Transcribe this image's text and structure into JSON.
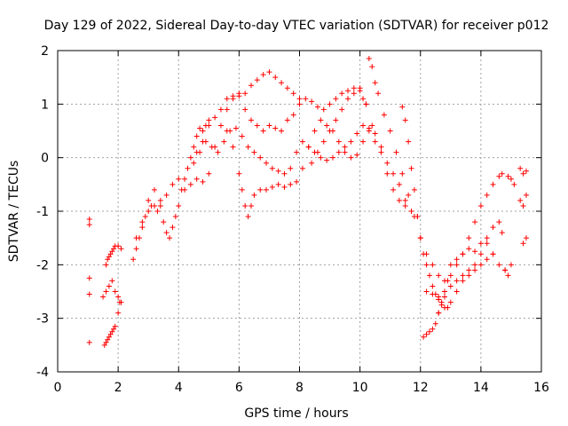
{
  "chart_data": {
    "type": "scatter",
    "title": "Day 129 of 2022, Sidereal Day-to-day VTEC variation (SDTVAR) for receiver p012",
    "xlabel": "GPS time / hours",
    "ylabel": "SDTVAR / TECUs",
    "xlim": [
      0,
      16
    ],
    "ylim": [
      -4,
      2
    ],
    "xticks": [
      0,
      2,
      4,
      6,
      8,
      10,
      12,
      14,
      16
    ],
    "yticks": [
      -4,
      -3,
      -2,
      -1,
      0,
      1,
      2
    ],
    "grid": true,
    "marker": "+",
    "color": "#ff0000",
    "series": [
      {
        "x": [
          1.05,
          1.05,
          1.05,
          1.05,
          1.05
        ],
        "y": [
          -1.15,
          -1.25,
          -2.25,
          -2.55,
          -3.45
        ]
      },
      {
        "x": [
          1.55,
          1.6,
          1.65,
          1.7,
          1.75,
          1.8,
          1.85,
          1.9,
          2.0,
          2.05
        ],
        "y": [
          -3.5,
          -3.45,
          -3.4,
          -3.35,
          -3.3,
          -3.25,
          -3.2,
          -3.15,
          -2.9,
          -2.7
        ]
      },
      {
        "x": [
          1.5,
          1.6,
          1.7,
          1.8,
          1.9,
          2.0,
          2.1
        ],
        "y": [
          -2.6,
          -2.5,
          -2.4,
          -2.3,
          -2.5,
          -2.6,
          -2.7
        ]
      },
      {
        "x": [
          1.6,
          1.65,
          1.7,
          1.75,
          1.8,
          1.85,
          1.9,
          2.0,
          2.1
        ],
        "y": [
          -2.0,
          -1.9,
          -1.85,
          -1.8,
          -1.75,
          -1.7,
          -1.65,
          -1.65,
          -1.7
        ]
      },
      {
        "x": [
          2.5,
          2.6,
          2.7,
          2.8,
          2.9,
          3.0,
          3.1,
          3.2,
          3.3,
          3.4,
          3.5,
          3.6,
          3.7,
          3.8,
          3.9,
          4.0,
          4.1,
          4.2,
          4.3,
          4.4,
          4.5,
          4.6,
          4.7,
          4.8,
          4.9,
          5.0
        ],
        "y": [
          -1.9,
          -1.7,
          -1.5,
          -1.3,
          -1.1,
          -1.0,
          -0.9,
          -0.9,
          -1.0,
          -0.8,
          -1.2,
          -1.4,
          -1.5,
          -1.3,
          -1.1,
          -0.9,
          -0.6,
          -0.4,
          -0.2,
          0.0,
          0.2,
          0.4,
          0.55,
          0.5,
          0.6,
          0.7
        ]
      },
      {
        "x": [
          2.6,
          2.8,
          3.0,
          3.2,
          3.4,
          3.6,
          3.8,
          4.0,
          4.2,
          4.4,
          4.6,
          4.8,
          5.0,
          5.2,
          5.4,
          5.6,
          5.8,
          6.0,
          6.2,
          6.4,
          6.6,
          6.8,
          7.0,
          7.2,
          7.4,
          7.6,
          7.8,
          8.0
        ],
        "y": [
          -1.5,
          -1.2,
          -0.8,
          -0.6,
          -0.9,
          -0.7,
          -0.5,
          -0.4,
          -0.6,
          -0.5,
          -0.4,
          -0.45,
          -0.3,
          0.2,
          0.6,
          0.9,
          1.1,
          1.15,
          1.2,
          1.35,
          1.45,
          1.55,
          1.6,
          1.5,
          1.4,
          1.3,
          1.2,
          1.1
        ]
      },
      {
        "x": [
          4.6,
          4.8,
          5.0,
          5.2,
          5.4,
          5.6,
          5.8,
          6.0,
          6.2,
          6.4,
          6.6,
          6.8,
          7.0,
          7.2,
          7.4,
          7.6,
          7.8,
          8.0,
          8.2,
          8.4,
          8.6,
          8.8,
          9.0,
          9.2,
          9.4,
          9.6,
          9.8,
          10.0,
          10.2,
          10.4
        ],
        "y": [
          0.1,
          0.3,
          0.6,
          0.75,
          0.9,
          1.1,
          1.15,
          1.2,
          0.9,
          0.7,
          0.6,
          0.5,
          0.6,
          0.55,
          0.5,
          0.7,
          0.8,
          1.0,
          1.1,
          1.05,
          0.95,
          0.9,
          1.0,
          1.1,
          1.2,
          1.25,
          1.3,
          1.25,
          1.0,
          0.6
        ]
      },
      {
        "x": [
          4.5,
          4.7,
          4.9,
          5.1,
          5.3,
          5.5,
          5.7,
          5.9,
          6.1,
          6.3,
          6.5,
          6.7,
          6.9,
          7.1,
          7.3,
          7.5,
          7.7,
          7.9,
          8.1,
          8.3,
          8.5,
          8.7,
          8.9,
          9.1,
          9.3,
          9.5,
          9.7,
          9.9,
          10.1,
          10.3,
          10.5,
          10.7,
          10.9,
          11.1,
          11.3,
          11.5,
          11.7,
          11.9
        ],
        "y": [
          -0.1,
          0.1,
          0.3,
          0.2,
          0.1,
          0.3,
          0.5,
          0.55,
          0.4,
          0.2,
          0.1,
          0.0,
          -0.1,
          -0.2,
          -0.25,
          -0.3,
          -0.2,
          0.1,
          0.3,
          0.2,
          0.1,
          0.0,
          -0.05,
          0.0,
          0.1,
          0.2,
          0.3,
          0.45,
          0.6,
          0.5,
          0.3,
          0.1,
          -0.3,
          -0.6,
          -0.8,
          -0.9,
          -1.0,
          -1.1
        ]
      },
      {
        "x": [
          5.6,
          5.8,
          6.0,
          6.1,
          6.2,
          6.3,
          6.4,
          6.5,
          6.7,
          6.9,
          7.1,
          7.3,
          7.5,
          7.7,
          7.9,
          8.1,
          8.3,
          8.5,
          8.7,
          8.9,
          9.1,
          9.3,
          9.5,
          9.7,
          9.9,
          10.1,
          10.3,
          10.5,
          10.7,
          10.9,
          11.1,
          11.3,
          11.5
        ],
        "y": [
          0.5,
          0.2,
          -0.3,
          -0.6,
          -0.9,
          -1.1,
          -0.9,
          -0.7,
          -0.6,
          -0.6,
          -0.55,
          -0.5,
          -0.55,
          -0.5,
          -0.45,
          -0.2,
          0.2,
          0.5,
          0.7,
          0.6,
          0.5,
          0.3,
          0.1,
          0.0,
          0.05,
          0.3,
          0.55,
          0.45,
          0.2,
          -0.1,
          -0.3,
          -0.5,
          -0.8
        ]
      },
      {
        "x": [
          8.4,
          8.6,
          8.8,
          9.0,
          9.2,
          9.4,
          9.6,
          9.8,
          10.0,
          10.1,
          10.2,
          10.3,
          10.4,
          10.5,
          10.6,
          10.8,
          11.0,
          11.2,
          11.4,
          11.6,
          11.8,
          12.0,
          12.2,
          12.4,
          12.6
        ],
        "y": [
          -0.1,
          0.1,
          0.3,
          0.5,
          0.7,
          0.9,
          1.1,
          1.2,
          1.3,
          1.1,
          1.0,
          1.85,
          1.7,
          1.4,
          1.2,
          0.8,
          0.5,
          0.1,
          -0.3,
          -0.7,
          -1.1,
          -1.5,
          -1.8,
          -2.0,
          -2.2
        ]
      },
      {
        "x": [
          11.4,
          11.5,
          11.6,
          11.7,
          11.8,
          11.9,
          12.0,
          12.1,
          12.2,
          12.3,
          12.4,
          12.5,
          12.6,
          12.7,
          12.8,
          12.9,
          13.0,
          13.2,
          13.4,
          13.6,
          13.8,
          14.0,
          14.2,
          14.4
        ],
        "y": [
          0.95,
          0.7,
          0.3,
          -0.2,
          -0.6,
          -1.1,
          -1.5,
          -1.8,
          -2.0,
          -2.2,
          -2.4,
          -2.55,
          -2.65,
          -2.75,
          -2.8,
          -2.8,
          -2.7,
          -2.5,
          -2.3,
          -2.2,
          -2.1,
          -2.0,
          -1.9,
          -1.8
        ]
      },
      {
        "x": [
          12.1,
          12.2,
          12.3,
          12.4,
          12.5,
          12.6,
          12.7,
          12.8,
          12.9,
          13.0,
          13.2,
          13.4,
          13.6,
          13.8,
          14.0,
          14.2,
          14.4,
          14.6,
          14.7
        ],
        "y": [
          -3.35,
          -3.3,
          -3.25,
          -3.2,
          -3.1,
          -2.9,
          -2.7,
          -2.5,
          -2.3,
          -2.2,
          -2.0,
          -1.8,
          -1.5,
          -1.2,
          -0.9,
          -0.7,
          -0.5,
          -0.35,
          -0.3
        ]
      },
      {
        "x": [
          12.2,
          12.4,
          12.6,
          12.8,
          13.0,
          13.2,
          13.4,
          13.6,
          13.8,
          14.0,
          14.2,
          14.4,
          14.6,
          14.7
        ],
        "y": [
          -2.5,
          -2.55,
          -2.6,
          -2.3,
          -2.0,
          -1.9,
          -1.8,
          -1.7,
          -1.75,
          -1.6,
          -1.5,
          -1.3,
          -1.2,
          -1.4
        ]
      },
      {
        "x": [
          12.6,
          12.8,
          13.0,
          13.2,
          13.4,
          13.6,
          13.8,
          14.0,
          14.2,
          14.4,
          14.6,
          14.8,
          15.0
        ],
        "y": [
          -2.9,
          -2.6,
          -2.4,
          -2.3,
          -2.2,
          -2.1,
          -2.0,
          -1.8,
          -1.6,
          -1.8,
          -2.0,
          -2.1,
          -2.0
        ]
      },
      {
        "x": [
          14.9,
          15.0,
          15.1,
          15.3,
          15.4,
          15.5,
          15.3,
          15.4,
          15.5,
          15.4,
          15.5,
          14.8,
          14.9
        ],
        "y": [
          -0.35,
          -0.4,
          -0.5,
          -0.2,
          -0.3,
          -0.25,
          -0.8,
          -0.9,
          -0.7,
          -1.6,
          -1.5,
          -2.1,
          -2.2
        ]
      }
    ]
  }
}
